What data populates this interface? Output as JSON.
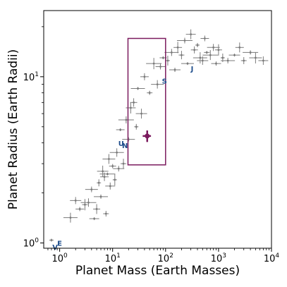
{
  "chart_data": {
    "type": "scatter",
    "title": "",
    "xlabel": "Planet Mass (Earth Masses)",
    "ylabel": "Planet Radius (Earth Radii)",
    "xscale": "log",
    "yscale": "log",
    "xlim": [
      0.5,
      10000
    ],
    "ylim": [
      0.93,
      25
    ],
    "x_ticks": [
      {
        "value": 1,
        "label_base": "10",
        "label_exp": "0"
      },
      {
        "value": 10,
        "label_base": "10",
        "label_exp": "1"
      },
      {
        "value": 100,
        "label_base": "10",
        "label_exp": "2"
      },
      {
        "value": 1000,
        "label_base": "10",
        "label_exp": "3"
      },
      {
        "value": 10000,
        "label_base": "10",
        "label_exp": "4"
      }
    ],
    "y_ticks": [
      {
        "value": 1,
        "label_base": "10",
        "label_exp": "0"
      },
      {
        "value": 10,
        "label_base": "10",
        "label_exp": "1"
      }
    ],
    "grid": false,
    "colors": {
      "points": "#7a7a7a",
      "highlight": "#7b1a5e",
      "solar_system": "#1f4e8c"
    },
    "region_box": {
      "x_min": 19.5,
      "x_max": 100,
      "y_min": 2.95,
      "y_max": 17
    },
    "highlight_point": {
      "x": 45,
      "y": 4.4,
      "xerr": 8,
      "yerr": 0.35
    },
    "solar_system_planets": [
      {
        "label": "V",
        "x": 0.82,
        "y": 0.95
      },
      {
        "label": "E",
        "x": 1.0,
        "y": 1.0
      },
      {
        "label": "U",
        "x": 14.5,
        "y": 3.98
      },
      {
        "label": "N",
        "x": 17.1,
        "y": 3.87
      },
      {
        "label": "S",
        "x": 95.2,
        "y": 9.45
      },
      {
        "label": "J",
        "x": 318,
        "y": 11.2
      }
    ],
    "points": [
      {
        "x": 0.7,
        "y": 1.04
      },
      {
        "x": 1.6,
        "y": 1.42
      },
      {
        "x": 2.0,
        "y": 1.8
      },
      {
        "x": 2.4,
        "y": 1.6
      },
      {
        "x": 3.0,
        "y": 1.7
      },
      {
        "x": 3.5,
        "y": 1.75
      },
      {
        "x": 4.0,
        "y": 2.1
      },
      {
        "x": 4.5,
        "y": 1.4
      },
      {
        "x": 5.0,
        "y": 1.6
      },
      {
        "x": 5.5,
        "y": 2.3
      },
      {
        "x": 6.0,
        "y": 1.9
      },
      {
        "x": 6.5,
        "y": 2.7
      },
      {
        "x": 7.0,
        "y": 2.5
      },
      {
        "x": 7.5,
        "y": 1.5
      },
      {
        "x": 8.0,
        "y": 2.6
      },
      {
        "x": 8.5,
        "y": 3.2
      },
      {
        "x": 9.0,
        "y": 2.2
      },
      {
        "x": 10.0,
        "y": 2.9
      },
      {
        "x": 11.0,
        "y": 2.4
      },
      {
        "x": 12.0,
        "y": 3.5
      },
      {
        "x": 13.0,
        "y": 2.8
      },
      {
        "x": 14.0,
        "y": 4.8
      },
      {
        "x": 16.0,
        "y": 3.0
      },
      {
        "x": 18.0,
        "y": 5.5
      },
      {
        "x": 20.0,
        "y": 4.2
      },
      {
        "x": 22.0,
        "y": 6.5
      },
      {
        "x": 25.0,
        "y": 7.0
      },
      {
        "x": 28.0,
        "y": 5.0
      },
      {
        "x": 30.0,
        "y": 8.5
      },
      {
        "x": 35.0,
        "y": 6.0
      },
      {
        "x": 40.0,
        "y": 10.0
      },
      {
        "x": 50.0,
        "y": 8.0
      },
      {
        "x": 60.0,
        "y": 12.0
      },
      {
        "x": 70.0,
        "y": 9.0
      },
      {
        "x": 80.0,
        "y": 11.5
      },
      {
        "x": 90.0,
        "y": 13.0
      },
      {
        "x": 110.0,
        "y": 12.5
      },
      {
        "x": 130.0,
        "y": 14.0
      },
      {
        "x": 150.0,
        "y": 11.0
      },
      {
        "x": 170.0,
        "y": 15.0
      },
      {
        "x": 200.0,
        "y": 13.5
      },
      {
        "x": 230.0,
        "y": 16.5
      },
      {
        "x": 260.0,
        "y": 12.0
      },
      {
        "x": 300.0,
        "y": 18.0
      },
      {
        "x": 350.0,
        "y": 14.5
      },
      {
        "x": 400.0,
        "y": 15.5
      },
      {
        "x": 450.0,
        "y": 13.0
      },
      {
        "x": 500.0,
        "y": 12.5
      },
      {
        "x": 550.0,
        "y": 17.0
      },
      {
        "x": 600.0,
        "y": 14.0
      },
      {
        "x": 700.0,
        "y": 13.5
      },
      {
        "x": 800.0,
        "y": 15.0
      },
      {
        "x": 900.0,
        "y": 12.0
      },
      {
        "x": 1000.0,
        "y": 14.5
      },
      {
        "x": 1200.0,
        "y": 13.0
      },
      {
        "x": 1500.0,
        "y": 12.5
      },
      {
        "x": 2000.0,
        "y": 13.5
      },
      {
        "x": 2500.0,
        "y": 15.0
      },
      {
        "x": 3000.0,
        "y": 12.5
      },
      {
        "x": 4000.0,
        "y": 14.0
      },
      {
        "x": 5000.0,
        "y": 13.0
      },
      {
        "x": 7000.0,
        "y": 12.5
      }
    ]
  }
}
